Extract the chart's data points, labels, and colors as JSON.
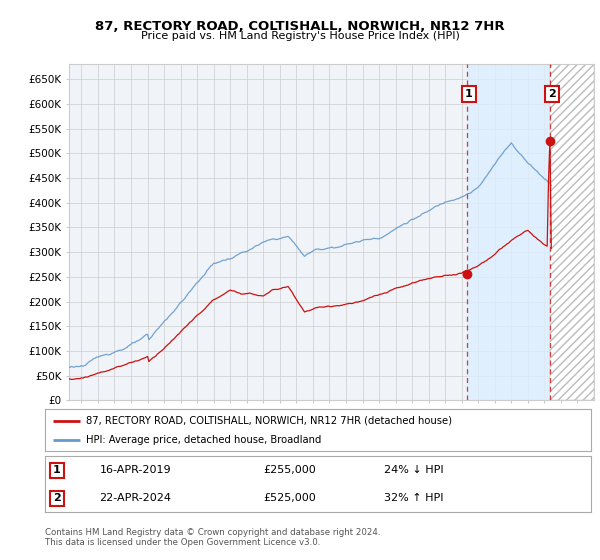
{
  "title": "87, RECTORY ROAD, COLTISHALL, NORWICH, NR12 7HR",
  "subtitle": "Price paid vs. HM Land Registry's House Price Index (HPI)",
  "ylim": [
    0,
    680000
  ],
  "xlim_start": 1995.25,
  "xlim_end": 2027.0,
  "yticks": [
    0,
    50000,
    100000,
    150000,
    200000,
    250000,
    300000,
    350000,
    400000,
    450000,
    500000,
    550000,
    600000,
    650000
  ],
  "ytick_labels": [
    "£0",
    "£50K",
    "£100K",
    "£150K",
    "£200K",
    "£250K",
    "£300K",
    "£350K",
    "£400K",
    "£450K",
    "£500K",
    "£550K",
    "£600K",
    "£650K"
  ],
  "grid_color": "#cccccc",
  "bg_color": "#ffffff",
  "plot_bg_color": "#f0f4f8",
  "hpi_color": "#6699cc",
  "price_color": "#cc1111",
  "transaction1_date": 2019.29,
  "transaction1_price": 255000,
  "transaction1_label": "1",
  "transaction2_date": 2024.31,
  "transaction2_price": 525000,
  "transaction2_label": "2",
  "legend_label_price": "87, RECTORY ROAD, COLTISHALL, NORWICH, NR12 7HR (detached house)",
  "legend_label_hpi": "HPI: Average price, detached house, Broadland",
  "note1_label": "1",
  "note1_date": "16-APR-2019",
  "note1_price": "£255,000",
  "note1_hpi": "24% ↓ HPI",
  "note2_label": "2",
  "note2_date": "22-APR-2024",
  "note2_price": "£525,000",
  "note2_hpi": "32% ↑ HPI",
  "footer": "Contains HM Land Registry data © Crown copyright and database right 2024.\nThis data is licensed under the Open Government Licence v3.0.",
  "hatch_region_start": 2024.31,
  "hatch_region_end": 2027.0,
  "shaded_region1_start": 2019.29,
  "shaded_region1_end": 2024.31,
  "shaded_color": "#ddeeff"
}
